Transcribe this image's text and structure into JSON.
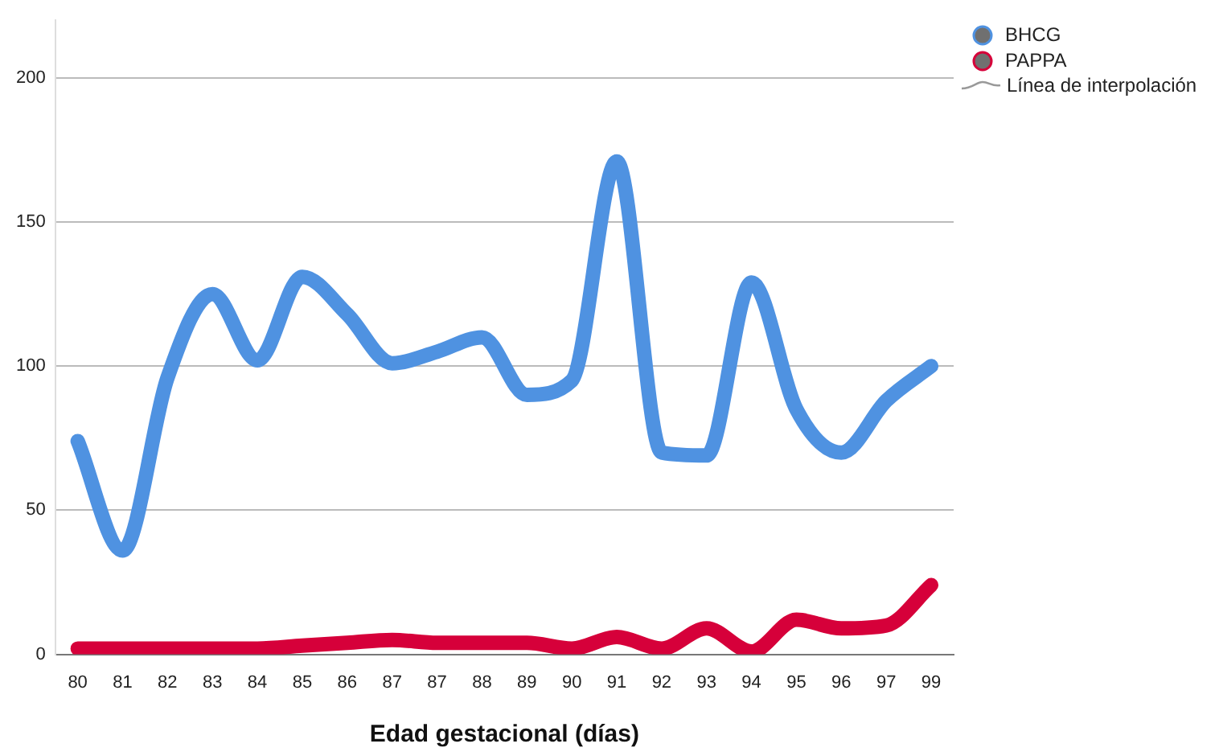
{
  "chart_data": {
    "type": "line",
    "xlabel": "Edad gestacional (días)",
    "categories": [
      "80",
      "81",
      "82",
      "83",
      "84",
      "85",
      "86",
      "87",
      "87",
      "88",
      "89",
      "90",
      "91",
      "92",
      "93",
      "94",
      "95",
      "96",
      "97",
      "99"
    ],
    "series": [
      {
        "name": "BHCG",
        "color": "#4f92e1",
        "values": [
          74,
          36,
          96,
          125,
          102,
          131,
          118,
          101,
          105,
          110,
          90,
          95,
          171,
          70,
          69,
          129,
          85,
          70,
          88,
          100
        ]
      },
      {
        "name": "PAPPA",
        "color": "#d6003a",
        "values": [
          2,
          2,
          2,
          2,
          2,
          3,
          4,
          5,
          4,
          4,
          4,
          2,
          6,
          2,
          9,
          1,
          12,
          9,
          10,
          24
        ]
      }
    ],
    "ylim": [
      0,
      220
    ],
    "yticks": [
      0,
      50,
      100,
      150,
      200
    ],
    "grid": "y",
    "legend": "top right",
    "annotations": [
      "Línea de interpolación"
    ]
  }
}
